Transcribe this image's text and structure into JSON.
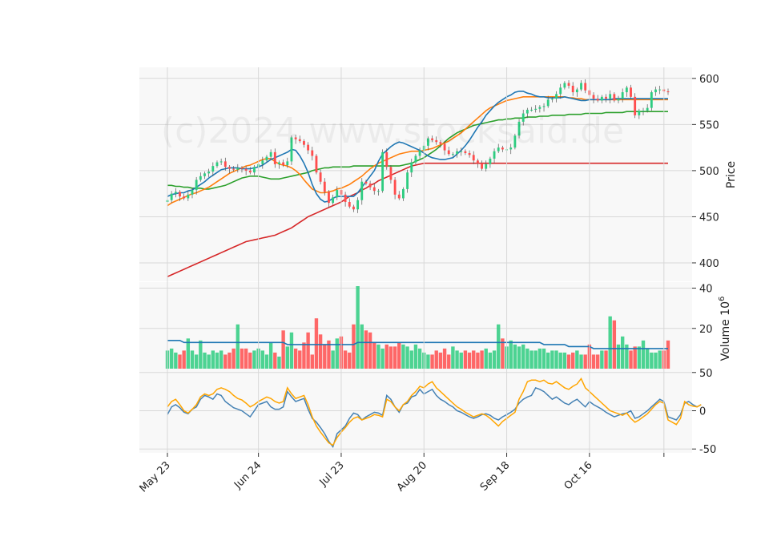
{
  "watermark": "(c)2024 www.stocksaid.de",
  "colors": {
    "panel_bg": "#f8f8f8",
    "grid": "#d8d8d8",
    "up": "#2ecc80",
    "down": "#ff4d4d",
    "ma_fast": "#1f77b4",
    "ma_mid": "#ff7f0e",
    "ma_slow": "#2ca02c",
    "ma_long": "#d62728",
    "vol_ma": "#1f77b4",
    "osc_a": "#4682b4",
    "osc_b": "#ffa500"
  },
  "chart_data": [
    {
      "type": "candlestick",
      "panel": "price",
      "ylabel": "Price",
      "ylim": [
        380,
        612
      ],
      "yticks": [
        400,
        450,
        500,
        550,
        600
      ],
      "x_ticks": [
        "May 23",
        "Jun 24",
        "Jul 23",
        "Aug 20",
        "Sep 18",
        "Oct 16",
        ""
      ],
      "x_tick_index": [
        0,
        22,
        42,
        62,
        82,
        102,
        120
      ],
      "close": [
        468,
        475,
        477,
        472,
        470,
        474,
        479,
        490,
        494,
        497,
        499,
        505,
        509,
        510,
        504,
        502,
        501,
        503,
        502,
        500,
        498,
        504,
        507,
        511,
        515,
        520,
        507,
        509,
        506,
        510,
        536,
        534,
        532,
        528,
        522,
        516,
        498,
        488,
        477,
        465,
        471,
        479,
        474,
        466,
        461,
        458,
        468,
        488,
        486,
        482,
        478,
        478,
        520,
        504,
        490,
        474,
        470,
        480,
        498,
        509,
        516,
        522,
        527,
        535,
        533,
        531,
        529,
        522,
        518,
        518,
        521,
        521,
        519,
        517,
        511,
        508,
        502,
        507,
        513,
        521,
        525,
        523,
        523,
        525,
        538,
        553,
        562,
        566,
        566,
        567,
        569,
        570,
        577,
        578,
        583,
        590,
        595,
        592,
        585,
        588,
        595,
        587,
        582,
        578,
        576,
        580,
        578,
        583,
        576,
        578,
        585,
        590,
        580,
        560,
        565,
        565,
        568,
        585,
        588,
        588,
        586,
        585
      ],
      "ma_fast": [
        472,
        474,
        475,
        476,
        476,
        478,
        479,
        482,
        485,
        488,
        492,
        495,
        498,
        501,
        502,
        503,
        503,
        503,
        502,
        502,
        502,
        503,
        504,
        506,
        509,
        512,
        514,
        516,
        518,
        520,
        523,
        522,
        516,
        508,
        498,
        485,
        475,
        469,
        466,
        467,
        470,
        472,
        472,
        472,
        472,
        472,
        476,
        482,
        488,
        494,
        500,
        510,
        518,
        522,
        526,
        529,
        531,
        530,
        528,
        526,
        524,
        522,
        519,
        516,
        514,
        513,
        512,
        512,
        513,
        514,
        518,
        522,
        527,
        533,
        540,
        547,
        553,
        560,
        565,
        570,
        574,
        577,
        580,
        582,
        585,
        586,
        586,
        584,
        583,
        581,
        580,
        580,
        579,
        579,
        579,
        579,
        580,
        579,
        578,
        577,
        576,
        576,
        577,
        577,
        577,
        577,
        577,
        577,
        578,
        578,
        578,
        578,
        578,
        578,
        578,
        578,
        578,
        578,
        578,
        578,
        578,
        578
      ],
      "ma_mid": [
        462,
        465,
        467,
        469,
        471,
        473,
        475,
        476,
        478,
        480,
        482,
        485,
        488,
        491,
        494,
        497,
        499,
        501,
        503,
        505,
        506,
        508,
        510,
        512,
        513,
        513,
        510,
        507,
        506,
        505,
        503,
        500,
        496,
        490,
        485,
        480,
        478,
        476,
        476,
        477,
        478,
        480,
        481,
        483,
        485,
        488,
        491,
        494,
        498,
        502,
        505,
        508,
        510,
        512,
        514,
        516,
        518,
        519,
        520,
        521,
        521,
        521,
        522,
        523,
        524,
        526,
        528,
        530,
        532,
        535,
        538,
        541,
        545,
        549,
        553,
        557,
        561,
        565,
        568,
        570,
        572,
        574,
        576,
        577,
        578,
        579,
        580,
        580,
        580,
        580,
        580,
        580,
        580,
        580,
        580,
        580,
        580,
        579,
        579,
        578,
        578,
        577,
        577,
        577,
        577,
        577,
        577,
        577,
        577,
        577,
        577,
        577,
        577,
        577,
        577,
        577,
        577,
        577,
        577,
        577,
        577,
        577
      ],
      "ma_slow": [
        484,
        484,
        483,
        483,
        482,
        482,
        481,
        481,
        481,
        480,
        480,
        481,
        482,
        483,
        484,
        486,
        488,
        490,
        492,
        493,
        494,
        494,
        494,
        493,
        492,
        491,
        491,
        491,
        492,
        493,
        494,
        495,
        496,
        497,
        498,
        500,
        501,
        502,
        503,
        503,
        504,
        504,
        504,
        504,
        504,
        505,
        505,
        505,
        505,
        505,
        505,
        505,
        505,
        505,
        505,
        505,
        505,
        506,
        507,
        508,
        510,
        512,
        514,
        517,
        520,
        523,
        527,
        531,
        535,
        538,
        541,
        543,
        545,
        547,
        549,
        550,
        551,
        552,
        553,
        554,
        555,
        555,
        556,
        556,
        557,
        557,
        557,
        558,
        558,
        558,
        559,
        559,
        559,
        560,
        560,
        560,
        560,
        561,
        561,
        561,
        561,
        562,
        562,
        562,
        562,
        562,
        563,
        563,
        563,
        563,
        563,
        564,
        564,
        564,
        564,
        564,
        564,
        564,
        564,
        564,
        564,
        564
      ],
      "ma_long": [
        385,
        387,
        389,
        391,
        393,
        395,
        397,
        399,
        401,
        403,
        405,
        407,
        409,
        411,
        413,
        415,
        417,
        419,
        421,
        423,
        424,
        425,
        426,
        427,
        428,
        429,
        430,
        432,
        434,
        436,
        438,
        441,
        444,
        447,
        450,
        452,
        454,
        456,
        458,
        460,
        462,
        464,
        466,
        469,
        472,
        474,
        476,
        479,
        481,
        484,
        486,
        489,
        491,
        493,
        495,
        497,
        499,
        501,
        503,
        505,
        506,
        507,
        508,
        508,
        508,
        508,
        508,
        508,
        508,
        508,
        508,
        508,
        508,
        508,
        508,
        508,
        508,
        508,
        508,
        508,
        508,
        508,
        508,
        508,
        508,
        508,
        508,
        508,
        508,
        508,
        508,
        508,
        508,
        508,
        508,
        508,
        508,
        508,
        508,
        508,
        508,
        508,
        508,
        508,
        508,
        508,
        508,
        508,
        508,
        508,
        508,
        508,
        508,
        508,
        508,
        508,
        508,
        508,
        508,
        508,
        508,
        508
      ]
    },
    {
      "type": "bar",
      "panel": "volume",
      "ylabel": "Volume  10^6",
      "ylim": [
        0,
        43
      ],
      "yticks": [
        20,
        40
      ],
      "values": [
        9,
        10,
        8,
        7,
        9,
        15,
        9,
        7,
        14,
        8,
        7,
        9,
        8,
        9,
        7,
        8,
        10,
        22,
        10,
        10,
        8,
        9,
        10,
        9,
        7,
        13,
        8,
        6,
        19,
        11,
        18,
        10,
        9,
        13,
        18,
        7,
        25,
        17,
        12,
        14,
        9,
        15,
        16,
        9,
        8,
        22,
        41,
        22,
        19,
        18,
        13,
        12,
        10,
        12,
        11,
        11,
        13,
        12,
        11,
        9,
        12,
        10,
        8,
        7,
        7,
        9,
        8,
        10,
        7,
        11,
        9,
        8,
        9,
        8,
        9,
        8,
        9,
        10,
        8,
        9,
        22,
        15,
        11,
        14,
        12,
        11,
        12,
        10,
        9,
        9,
        10,
        10,
        8,
        9,
        9,
        8,
        8,
        7,
        8,
        9,
        7,
        7,
        12,
        7,
        7,
        9,
        9,
        26,
        24,
        12,
        16,
        12,
        9,
        11,
        11,
        14,
        10,
        8,
        8,
        9,
        9,
        14
      ],
      "ma": [
        14,
        14,
        14,
        14,
        13,
        13,
        13,
        13,
        13,
        13,
        13,
        13,
        13,
        13,
        13,
        13,
        13,
        13,
        13,
        13,
        13,
        13,
        13,
        13,
        13,
        13,
        13,
        13,
        13,
        12,
        12,
        12,
        12,
        12,
        12,
        12,
        12,
        12,
        12,
        12,
        12,
        12,
        12,
        12,
        12,
        12,
        13,
        13,
        13,
        13,
        13,
        13,
        13,
        13,
        13,
        13,
        13,
        13,
        13,
        13,
        13,
        13,
        13,
        13,
        13,
        13,
        13,
        13,
        13,
        13,
        13,
        13,
        13,
        13,
        13,
        13,
        13,
        13,
        13,
        13,
        13,
        13,
        13,
        13,
        13,
        13,
        13,
        13,
        13,
        13,
        13,
        12,
        12,
        12,
        12,
        12,
        12,
        11,
        11,
        11,
        11,
        11,
        11,
        10,
        10,
        10,
        10,
        10,
        10,
        10,
        10,
        10,
        10,
        10,
        10,
        10,
        10,
        10,
        10,
        10,
        10,
        10
      ]
    },
    {
      "type": "line",
      "panel": "oscillator",
      "ylim": [
        -55,
        55
      ],
      "yticks": [
        -50,
        0,
        50
      ],
      "series": [
        {
          "color_key": "osc_a",
          "values": [
            -5,
            5,
            8,
            4,
            -2,
            -4,
            2,
            5,
            15,
            20,
            18,
            15,
            22,
            20,
            12,
            8,
            4,
            2,
            0,
            -4,
            -8,
            0,
            8,
            10,
            12,
            5,
            2,
            2,
            5,
            25,
            18,
            12,
            14,
            16,
            2,
            -10,
            -15,
            -22,
            -30,
            -40,
            -47,
            -30,
            -25,
            -20,
            -10,
            -3,
            -5,
            -12,
            -8,
            -5,
            -2,
            -3,
            -6,
            20,
            15,
            5,
            -2,
            8,
            10,
            18,
            20,
            28,
            22,
            25,
            28,
            20,
            15,
            12,
            8,
            5,
            0,
            -2,
            -5,
            -8,
            -10,
            -8,
            -5,
            -4,
            -6,
            -10,
            -12,
            -8,
            -5,
            -2,
            2,
            10,
            15,
            18,
            20,
            30,
            28,
            25,
            20,
            15,
            18,
            14,
            10,
            8,
            12,
            15,
            10,
            5,
            12,
            8,
            5,
            2,
            -2,
            -5,
            -8,
            -6,
            -4,
            -3,
            0,
            -10,
            -8,
            -4,
            0,
            5,
            10,
            15,
            12,
            -8,
            -10,
            -12,
            -5,
            10,
            12,
            8,
            5,
            8
          ]
        },
        {
          "color_key": "osc_b",
          "values": [
            5,
            12,
            15,
            8,
            0,
            -3,
            2,
            8,
            18,
            22,
            20,
            22,
            28,
            30,
            28,
            25,
            20,
            16,
            14,
            10,
            5,
            8,
            12,
            15,
            18,
            16,
            12,
            10,
            12,
            30,
            22,
            16,
            18,
            20,
            8,
            -8,
            -20,
            -28,
            -35,
            -42,
            -45,
            -35,
            -28,
            -22,
            -15,
            -10,
            -8,
            -12,
            -10,
            -8,
            -5,
            -6,
            -8,
            15,
            12,
            5,
            0,
            8,
            12,
            20,
            25,
            32,
            30,
            35,
            38,
            30,
            25,
            20,
            15,
            10,
            5,
            2,
            -2,
            -5,
            -8,
            -6,
            -4,
            -6,
            -10,
            -15,
            -20,
            -14,
            -10,
            -6,
            -2,
            15,
            25,
            38,
            40,
            40,
            38,
            40,
            36,
            35,
            38,
            34,
            30,
            28,
            32,
            35,
            42,
            30,
            25,
            20,
            15,
            10,
            5,
            0,
            -2,
            -4,
            -6,
            -3,
            -10,
            -15,
            -12,
            -8,
            -4,
            2,
            8,
            12,
            10,
            -12,
            -15,
            -18,
            -10,
            12,
            8,
            6,
            5,
            8
          ]
        }
      ]
    }
  ]
}
